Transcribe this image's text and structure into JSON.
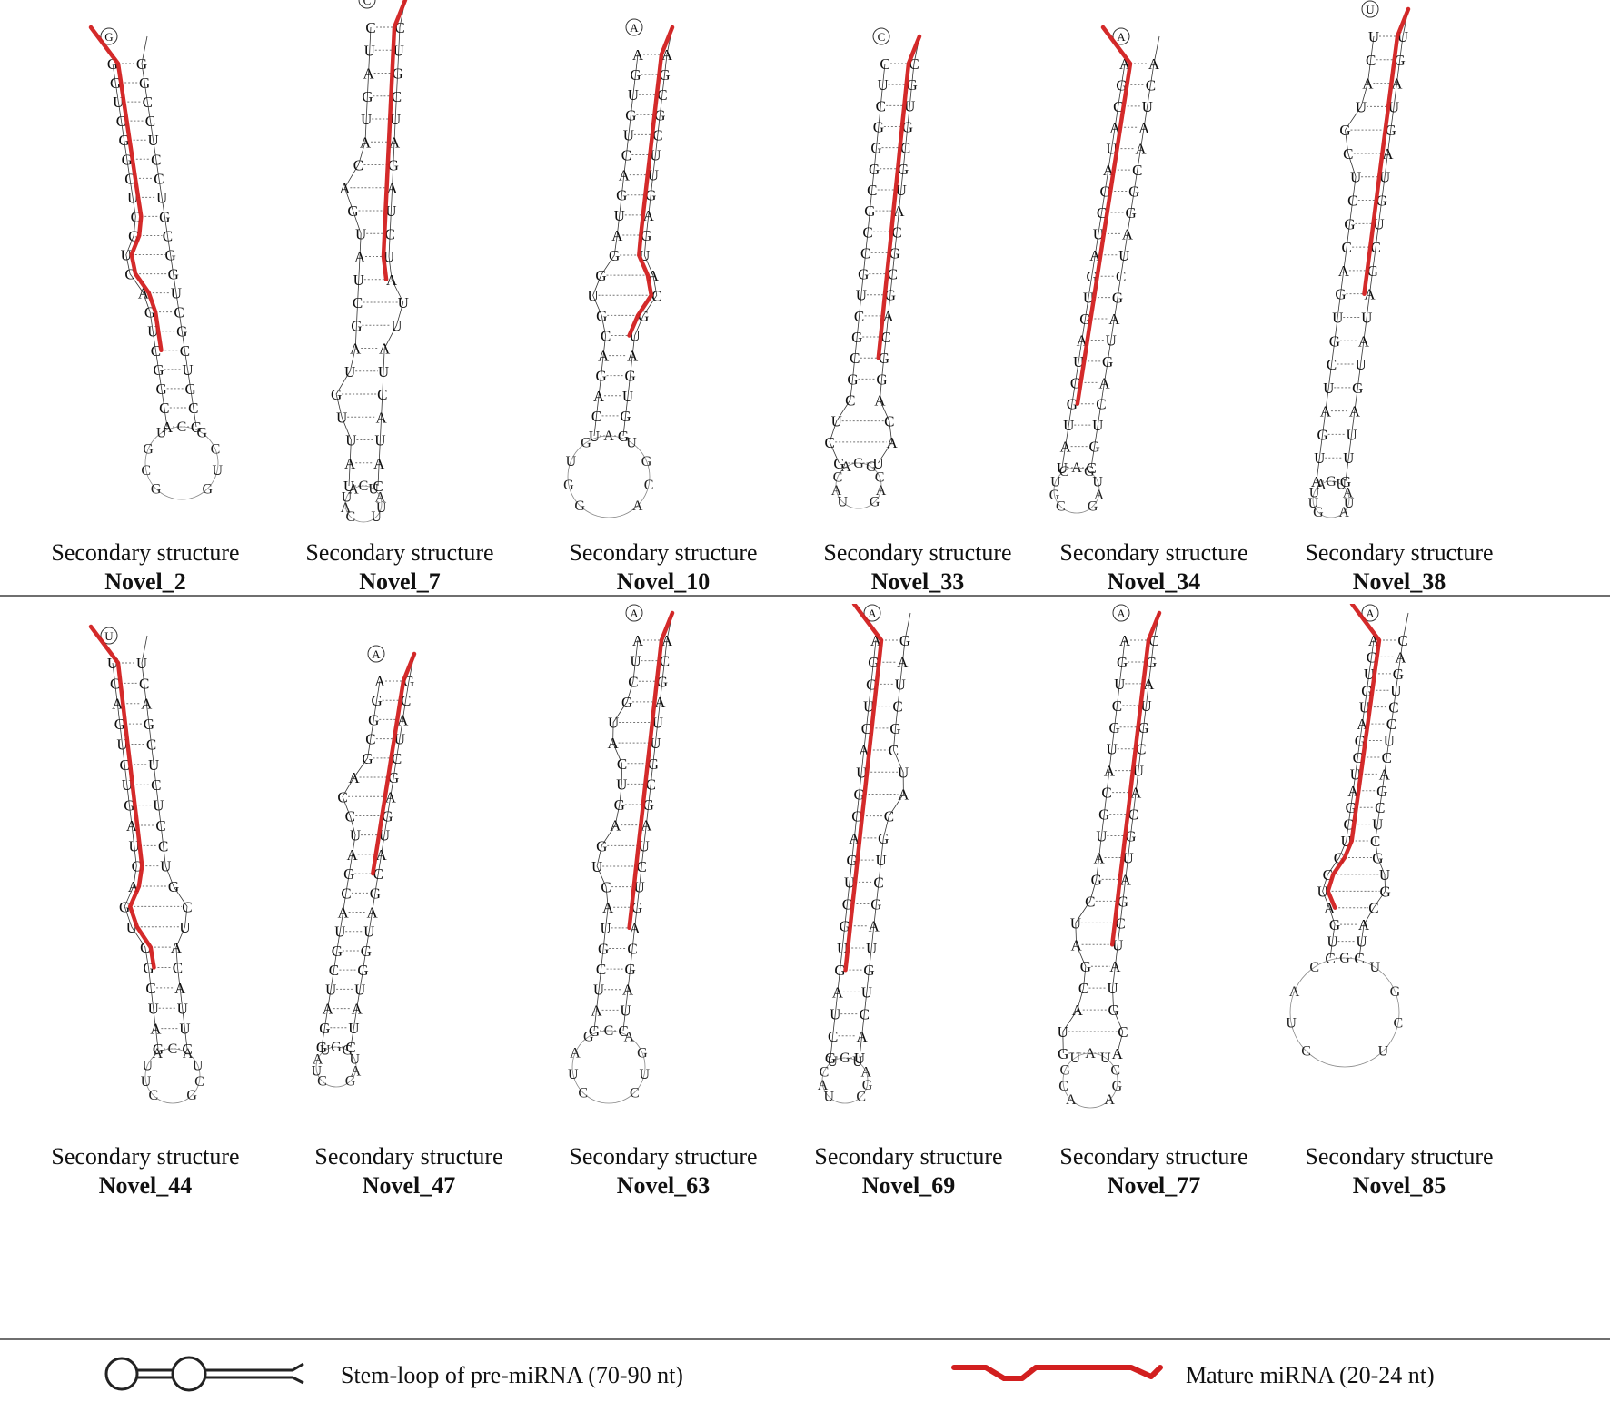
{
  "panel_label": "Secondary structure",
  "panels": [
    {
      "name": "Novel_2",
      "base_run": "GGUCGGCUCGUCAGUCGGCAGCGUCGCUGGCGUCCUCCGG"
    },
    {
      "name": "Novel_7",
      "base_run": "CUAGUACAGUAUCGAUGUUAUCAUACUAUUAUCUAGAUCGUC"
    },
    {
      "name": "Novel_10",
      "base_run": "AGUGUCAGUAGGUGCAGACUGGUGAUGCAUGAGUUCGCGA"
    },
    {
      "name": "Novel_33",
      "base_run": "CUCGGGCGCCGUCGCGCUCGUACAGGCAGCGCAUGCGUGC"
    },
    {
      "name": "Novel_34",
      "base_run": "AGCAUACCUAGUGAUCGUAUCGUCAGUAGCUAGGCAAUCA"
    },
    {
      "name": "Novel_38",
      "base_run": "UCAUGCUCGCAGUGCUAGUAGUUAGUAUAGCUGUAGUAGU"
    },
    {
      "name": "Novel_44",
      "base_run": "UCAGUCUGAUCAGUCGCUAGCUUACAUCGUCCUCUCGACU"
    },
    {
      "name": "Novel_47",
      "base_run": "AGGCGACCUAGCAUGCUAGGCUAUGGUAGCAUGAGCUACG"
    },
    {
      "name": "Novel_63",
      "base_run": "AUCGUACUGAGUCAUGCUAGCUAGCAGUCUAGCGUUAGCA"
    },
    {
      "name": "Novel_69",
      "base_run": "AGCUCAUGCAGUCGUGAUCGUACUGUAGCUGCAUCGCUAG"
    },
    {
      "name": "Novel_77",
      "base_run": "AGUCGUACGUAGCUAGCAUGACGUAUCGAUGCAUCGUAGC"
    },
    {
      "name": "Novel_85",
      "base_run": "ACUGUAGCUAGCUGCUAGUCCUACGUGCUCGACUCCUGAC"
    }
  ],
  "legend": {
    "precursor_label": "Stem-loop of pre-miRNA (70-90 nt)",
    "mature_label": "Mature miRNA (20-24 nt)"
  },
  "colors": {
    "mature": "#d21f1f",
    "strand": "#333333",
    "divider": "#6f6f6f"
  }
}
